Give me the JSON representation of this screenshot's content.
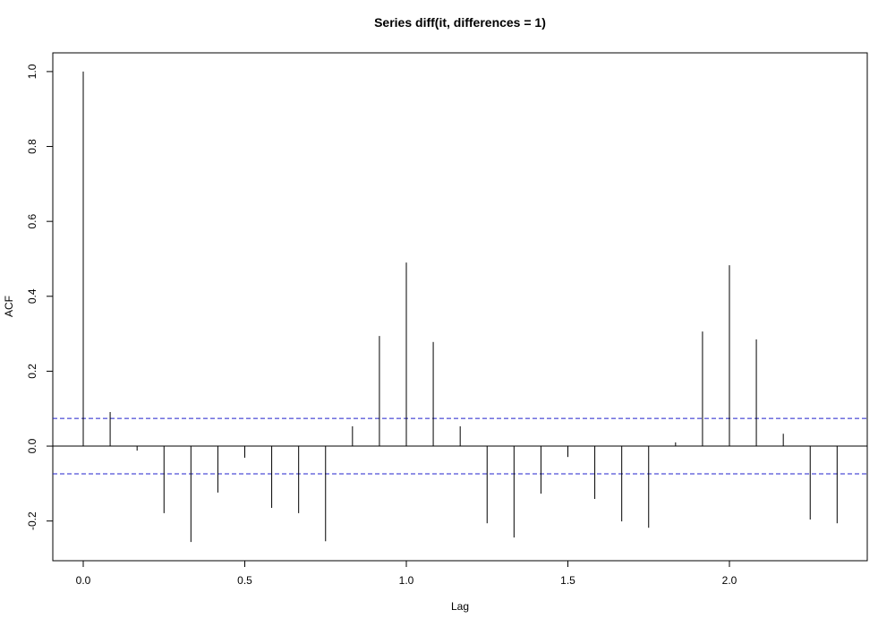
{
  "chart_data": {
    "type": "acf",
    "title": "Series  diff(it, differences = 1)",
    "x_label": "Lag",
    "y_label": "ACF",
    "x": [
      0,
      0.0833,
      0.1667,
      0.25,
      0.3333,
      0.4167,
      0.5,
      0.5833,
      0.6667,
      0.75,
      0.8333,
      0.9167,
      1,
      1.0833,
      1.1667,
      1.25,
      1.3333,
      1.4167,
      1.5,
      1.5833,
      1.6667,
      1.75,
      1.8333,
      1.9167,
      2,
      2.0833,
      2.1667,
      2.25,
      2.3333
    ],
    "values": [
      1.0,
      0.091,
      -0.012,
      -0.179,
      -0.256,
      -0.124,
      -0.031,
      -0.165,
      -0.179,
      -0.254,
      0.053,
      0.294,
      0.49,
      0.278,
      0.053,
      -0.206,
      -0.244,
      -0.127,
      -0.029,
      -0.141,
      -0.201,
      -0.218,
      0.01,
      0.306,
      0.483,
      0.285,
      0.033,
      -0.196,
      -0.206
    ],
    "color": "#000000",
    "ci": 0.074,
    "ci_color": "#2222cc",
    "xlim": [
      -0.0942,
      2.4266
    ],
    "ylim": [
      -0.306,
      1.05
    ],
    "xticks": [
      {
        "value": 0,
        "label": "0.0"
      },
      0.5,
      {
        "value": 1,
        "label": "1.0"
      },
      1.5,
      {
        "value": 2,
        "label": "2.0"
      }
    ],
    "yticks": [
      -0.2,
      {
        "value": 0,
        "label": "0.0"
      },
      0.2,
      0.4,
      0.6,
      0.8,
      {
        "value": 1,
        "label": "1.0"
      }
    ]
  }
}
